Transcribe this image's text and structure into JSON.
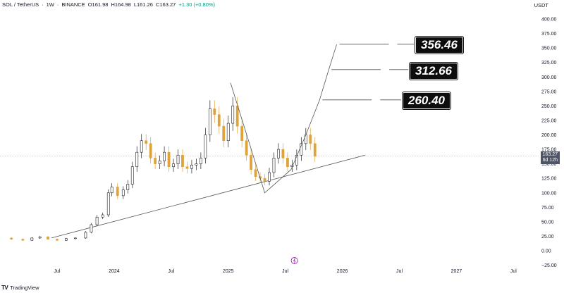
{
  "header": {
    "symbol": "SOL / TetherUS",
    "interval": "1W",
    "exchange": "BINANCE",
    "open": "O161.98",
    "high": "H164.98",
    "low": "L161.26",
    "close": "C163.27",
    "change": "+1.30 (+0.80%)"
  },
  "currency": "USDT",
  "branding": "TradingView",
  "last_price": {
    "value": "163.27",
    "countdown": "6d 12h"
  },
  "targets": [
    "356.46",
    "312.66",
    "260.40"
  ],
  "colors": {
    "up": "#222222",
    "down": "#e0a33a",
    "line": "#555555",
    "accent": "#9c27b0"
  },
  "chart_data": {
    "type": "candlestick",
    "y_axis": {
      "range": [
        -25,
        425
      ],
      "ticks": [
        "400.00",
        "375.00",
        "350.00",
        "325.00",
        "300.00",
        "275.00",
        "250.00",
        "225.00",
        "200.00",
        "175.00",
        "150.00",
        "125.00",
        "100.00",
        "75.00",
        "50.00",
        "25.00",
        "0.00",
        "−25.00"
      ]
    },
    "x_axis": {
      "ticks": [
        {
          "label": "Jul",
          "t": 2023.5
        },
        {
          "label": "2024",
          "t": 2024.0
        },
        {
          "label": "Jul",
          "t": 2024.5
        },
        {
          "label": "2025",
          "t": 2025.0
        },
        {
          "label": "Jul",
          "t": 2025.5
        },
        {
          "label": "2026",
          "t": 2026.0
        },
        {
          "label": "Jul",
          "t": 2026.5
        },
        {
          "label": "2027",
          "t": 2027.0
        },
        {
          "label": "Jul",
          "t": 2027.5
        }
      ]
    },
    "price_path": [
      [
        2023.0,
        22
      ],
      [
        2023.1,
        20
      ],
      [
        2023.2,
        18
      ],
      [
        2023.28,
        22
      ],
      [
        2023.35,
        24
      ],
      [
        2023.42,
        20
      ],
      [
        2023.5,
        18
      ],
      [
        2023.58,
        21
      ],
      [
        2023.66,
        22
      ],
      [
        2023.75,
        32
      ],
      [
        2023.8,
        45
      ],
      [
        2023.85,
        58
      ],
      [
        2023.9,
        62
      ],
      [
        2023.95,
        100
      ],
      [
        2023.98,
        110
      ],
      [
        2024.03,
        95
      ],
      [
        2024.08,
        105
      ],
      [
        2024.12,
        115
      ],
      [
        2024.16,
        145
      ],
      [
        2024.2,
        170
      ],
      [
        2024.24,
        190
      ],
      [
        2024.28,
        185
      ],
      [
        2024.32,
        160
      ],
      [
        2024.36,
        150
      ],
      [
        2024.4,
        155
      ],
      [
        2024.44,
        170
      ],
      [
        2024.48,
        145
      ],
      [
        2024.52,
        150
      ],
      [
        2024.56,
        165
      ],
      [
        2024.6,
        145
      ],
      [
        2024.64,
        142
      ],
      [
        2024.68,
        148
      ],
      [
        2024.72,
        150
      ],
      [
        2024.76,
        160
      ],
      [
        2024.8,
        200
      ],
      [
        2024.84,
        245
      ],
      [
        2024.88,
        235
      ],
      [
        2024.92,
        215
      ],
      [
        2024.96,
        190
      ],
      [
        2025.0,
        220
      ],
      [
        2025.04,
        250
      ],
      [
        2025.08,
        215
      ],
      [
        2025.12,
        190
      ],
      [
        2025.16,
        165
      ],
      [
        2025.2,
        140
      ],
      [
        2025.24,
        128
      ],
      [
        2025.28,
        125
      ],
      [
        2025.32,
        120
      ],
      [
        2025.36,
        135
      ],
      [
        2025.4,
        160
      ],
      [
        2025.44,
        175
      ],
      [
        2025.48,
        160
      ],
      [
        2025.52,
        145
      ],
      [
        2025.56,
        148
      ],
      [
        2025.6,
        165
      ],
      [
        2025.64,
        185
      ],
      [
        2025.68,
        200
      ],
      [
        2025.72,
        185
      ],
      [
        2025.76,
        163
      ]
    ],
    "annotations": {
      "trendline": [
        [
          2023.45,
          22
        ],
        [
          2026.2,
          165
        ]
      ],
      "zigzag": [
        [
          2025.02,
          290
        ],
        [
          2025.32,
          100
        ],
        [
          2025.55,
          140
        ],
        [
          2025.68,
          200
        ],
        [
          2025.8,
          260
        ],
        [
          2025.88,
          312
        ],
        [
          2025.95,
          356
        ]
      ],
      "targets": [
        356.46,
        312.66,
        260.4
      ]
    }
  }
}
